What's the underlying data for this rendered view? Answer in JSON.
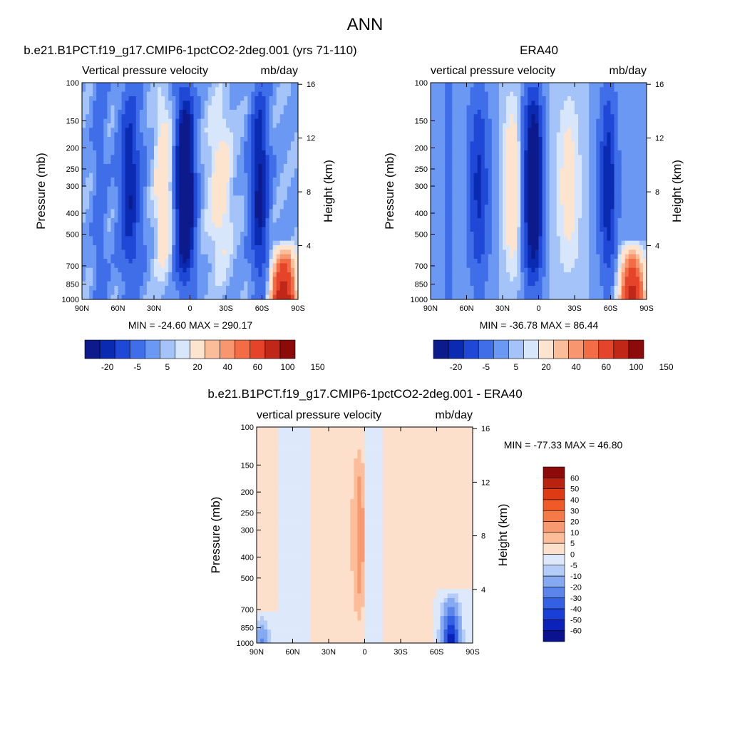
{
  "figure": {
    "title": "ANN",
    "background": "#ffffff"
  },
  "chart_data": [
    {
      "type": "heatmap",
      "title": "b.e21.B1PCT.f19_g17.CMIP6-1pctCO2-2deg.001 (yrs 71-110)",
      "subtitle_left": "Vertical pressure velocity",
      "subtitle_right": "mb/day",
      "xlabel": "",
      "ylabel": "Pressure (mb)",
      "ylabel_right": "Height (km)",
      "x_ticks": [
        "90N",
        "60N",
        "30N",
        "0",
        "30S",
        "60S",
        "90S"
      ],
      "y_ticks": [
        100,
        150,
        200,
        250,
        300,
        400,
        500,
        700,
        850,
        1000
      ],
      "y_scale": "log",
      "y_range": [
        100,
        1000
      ],
      "y_right_ticks": [
        16,
        12,
        8,
        4
      ],
      "stats": "MIN = -24.60  MAX = 290.17",
      "colorbar": {
        "orientation": "horizontal",
        "labels": [
          "-20",
          "-5",
          "5",
          "20",
          "40",
          "60",
          "100",
          "150"
        ],
        "colors": [
          "#0c1a8c",
          "#0b2ab2",
          "#1f48d6",
          "#3f6ee8",
          "#6b98f2",
          "#a3c3f9",
          "#d8e6fc",
          "#fde4cf",
          "#fbbc9a",
          "#f89670",
          "#f26c45",
          "#e5442a",
          "#c12717",
          "#8c0a0a"
        ]
      }
    },
    {
      "type": "heatmap",
      "title": "ERA40",
      "subtitle_left": "vertical pressure velocity",
      "subtitle_right": "mb/day",
      "xlabel": "",
      "ylabel": "Pressure (mb)",
      "ylabel_right": "Height (km)",
      "x_ticks": [
        "90N",
        "60N",
        "30N",
        "0",
        "30S",
        "60S",
        "90S"
      ],
      "y_ticks": [
        100,
        150,
        200,
        250,
        300,
        400,
        500,
        700,
        850,
        1000
      ],
      "y_scale": "log",
      "y_range": [
        100,
        1000
      ],
      "y_right_ticks": [
        16,
        12,
        8,
        4
      ],
      "stats": "MIN = -36.78  MAX =  86.44",
      "colorbar": {
        "orientation": "horizontal",
        "labels": [
          "-20",
          "-5",
          "5",
          "20",
          "40",
          "60",
          "100",
          "150"
        ],
        "colors": [
          "#0c1a8c",
          "#0b2ab2",
          "#1f48d6",
          "#3f6ee8",
          "#6b98f2",
          "#a3c3f9",
          "#d8e6fc",
          "#fde4cf",
          "#fbbc9a",
          "#f89670",
          "#f26c45",
          "#e5442a",
          "#c12717",
          "#8c0a0a"
        ]
      }
    },
    {
      "type": "heatmap",
      "title": "b.e21.B1PCT.f19_g17.CMIP6-1pctCO2-2deg.001 - ERA40",
      "subtitle_left": "vertical pressure velocity",
      "subtitle_right": "mb/day",
      "xlabel": "",
      "ylabel": "Pressure (mb)",
      "ylabel_right": "Height (km)",
      "x_ticks": [
        "90N",
        "60N",
        "30N",
        "0",
        "30S",
        "60S",
        "90S"
      ],
      "y_ticks": [
        100,
        150,
        200,
        250,
        300,
        400,
        500,
        700,
        850,
        1000
      ],
      "y_scale": "log",
      "y_range": [
        100,
        1000
      ],
      "y_right_ticks": [
        16,
        12,
        8,
        4
      ],
      "stats": "MIN = -77.33  MAX =  46.80",
      "colorbar": {
        "orientation": "vertical",
        "labels": [
          "60",
          "50",
          "40",
          "30",
          "20",
          "10",
          "5",
          "0",
          "-5",
          "-10",
          "-20",
          "-30",
          "-40",
          "-50",
          "-60"
        ],
        "colors": [
          "#8c0a0a",
          "#b8220f",
          "#de3a14",
          "#f05a28",
          "#f57a48",
          "#f89a70",
          "#fbbd9a",
          "#fde0cc",
          "#dde9fb",
          "#b4cdf8",
          "#86aaf1",
          "#5b85ea",
          "#3461e3",
          "#1a3fd6",
          "#0b22b8",
          "#0a1290"
        ]
      }
    }
  ]
}
